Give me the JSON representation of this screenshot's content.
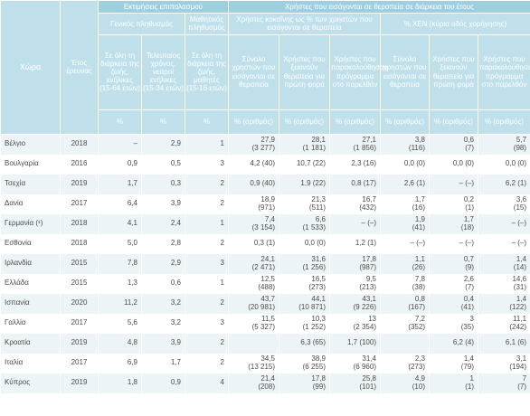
{
  "header": {
    "country": "Χώρα",
    "year": "Έτος έρευνας",
    "prevalence_group": "Εκτιμήσεις επιπολασμού",
    "treatment_group": "Χρήστες που εισάγονται σε θεραπεία σε διάρκεια του έτους",
    "general_population": "Γενικός πληθυσμός",
    "school_population": "Μαθητικός πληθυσμός",
    "cocaine_share": "Χρήστες κοκαΐνης ως % των χρηστών που εισάγονται σε θεραπεία",
    "injecting": "% ΧΕΝ (κύρια οδός χορήγησης)",
    "prevalence_columns": [
      "Σε όλη τη διάρκεια της ζωής, ενήλικες (15-64 ετών)",
      "Τελευταίος χρόνος, νεαροί ενήλικες (15-34 ετών)",
      "Σε όλη τη διάρκεια της ζωής, μαθητές (15-16 ετών)"
    ],
    "treatment_columns": [
      "Σύνολο χρηστών που εισάγονται σε θεραπεία",
      "Χρήστες που ξεκινούν θεραπεία για πρώτη φορά",
      "Χρήστες που παρακολούθησαν πρόγραμμα στο παρελθόν"
    ],
    "injecting_columns": [
      "Σύνολο χρηστών που εισάγονται σε θεραπεία",
      "Χρήστες που ξεκινούν θεραπεία για πρώτη φορά",
      "Χρήστες που παρακολούθησαν πρόγραμμα στο παρελθόν"
    ],
    "units": [
      "%",
      "%",
      "%",
      "% (αριθμός)",
      "% (αριθμός)",
      "% (αριθμός)",
      "% (αριθμός)",
      "% (αριθμός)",
      "% (αριθμός)"
    ]
  },
  "rows": [
    {
      "country": "Βέλγιο",
      "year": "2018",
      "prevalence": [
        "–",
        "2,9",
        "1"
      ],
      "treatment": [
        [
          "27,9",
          "(3 277)"
        ],
        [
          "28,1",
          "(1 181)"
        ],
        [
          "27,1",
          "(1 856)"
        ],
        [
          "3,8",
          "(116)"
        ],
        [
          "0,6",
          "(7)"
        ],
        [
          "5,7",
          "(98)"
        ]
      ]
    },
    {
      "country": "Βουλγαρία",
      "year": "2016",
      "prevalence": [
        "0,9",
        "0,5",
        "3"
      ],
      "treatment": [
        [
          "4,2 (40)",
          null
        ],
        [
          "10,7 (22)",
          null
        ],
        [
          "2,3 (16)",
          null
        ],
        [
          "0,0 (0)",
          null
        ],
        [
          "0,0 (0)",
          null
        ],
        [
          "0,0 (0)",
          null
        ]
      ]
    },
    {
      "country": "Τσεχία",
      "year": "2019",
      "prevalence": [
        "1,7",
        "0,3",
        "2"
      ],
      "treatment": [
        [
          "0,9 (40)",
          null
        ],
        [
          "1,9 (22)",
          null
        ],
        [
          "0,8 (17)",
          null
        ],
        [
          "2,6 (1)",
          null
        ],
        [
          "– (–)",
          null
        ],
        [
          "6,2 (1)",
          null
        ]
      ]
    },
    {
      "country": "Δανία",
      "year": "2017",
      "prevalence": [
        "6,4",
        "3,9",
        "2"
      ],
      "treatment": [
        [
          "18,9",
          "(971)"
        ],
        [
          "21,3",
          "(511)"
        ],
        [
          "16,7",
          "(432)"
        ],
        [
          "1,7",
          "(16)"
        ],
        [
          "0,2",
          "(1)"
        ],
        [
          "3,6",
          "(15)"
        ]
      ]
    },
    {
      "country": "Γερμανία (¹)",
      "year": "2018",
      "prevalence": [
        "4,1",
        "2,4",
        "1"
      ],
      "treatment": [
        [
          "7,4",
          "(3 154)"
        ],
        [
          "6,6",
          "(1 533)"
        ],
        [
          "– (–)",
          null
        ],
        [
          "1,9",
          "(41)"
        ],
        [
          "1,7",
          "(18)"
        ],
        [
          "– (–)",
          null
        ]
      ]
    },
    {
      "country": "Εσθονία",
      "year": "2018",
      "prevalence": [
        "5,0",
        "2,8",
        "2"
      ],
      "treatment": [
        [
          "0,3 (1)",
          null
        ],
        [
          "0,0 (0)",
          null
        ],
        [
          "1,2 (1)",
          null
        ],
        [
          "– (–)",
          null
        ],
        [
          "– (–)",
          null
        ],
        [
          "– (–)",
          null
        ]
      ]
    },
    {
      "country": "Ιρλανδία",
      "year": "2015",
      "prevalence": [
        "7,8",
        "2,9",
        "3"
      ],
      "treatment": [
        [
          "24,1",
          "(2 471)"
        ],
        [
          "31,6",
          "(1 256)"
        ],
        [
          "17,8",
          "(987)"
        ],
        [
          "1,1",
          "(26)"
        ],
        [
          "0,7",
          "(9)"
        ],
        [
          "1,4",
          "(14)"
        ]
      ]
    },
    {
      "country": "Ελλάδα",
      "year": "2015",
      "prevalence": [
        "1,3",
        "0,6",
        "1"
      ],
      "treatment": [
        [
          "12,5",
          "(488)"
        ],
        [
          "16,5",
          "(273)"
        ],
        [
          "9,5",
          "(213)"
        ],
        [
          "7,8",
          "(38)"
        ],
        [
          "2,6",
          "(7)"
        ],
        [
          "14,6",
          "(31)"
        ]
      ]
    },
    {
      "country": "Ισπανία",
      "year": "2020",
      "prevalence": [
        "11,2",
        "3,2",
        "2"
      ],
      "treatment": [
        [
          "43,7",
          "(20 981)"
        ],
        [
          "44,1",
          "(10 871)"
        ],
        [
          "43,1",
          "(9 226)"
        ],
        [
          "0,8",
          "(167)"
        ],
        [
          "0,4",
          "(41)"
        ],
        [
          "1,4",
          "(122)"
        ]
      ]
    },
    {
      "country": "Γαλλία",
      "year": "2017",
      "prevalence": [
        "5,6",
        "3,2",
        "3"
      ],
      "treatment": [
        [
          "11,5",
          "(5 327)"
        ],
        [
          "10,3",
          "(1 252)"
        ],
        [
          "13",
          "(2 354)"
        ],
        [
          "7,2",
          "(352)"
        ],
        [
          "3",
          "(35)"
        ],
        [
          "11,1",
          "(242)"
        ]
      ]
    },
    {
      "country": "Κροατία",
      "year": "2019",
      "prevalence": [
        "4,8",
        "3,9",
        "2"
      ],
      "treatment": [
        null,
        [
          "6,3 (65)",
          null
        ],
        [
          "1,7 (100)",
          null
        ],
        null,
        [
          "6,2 (4)",
          null
        ],
        [
          "6,1 (6)",
          null
        ]
      ]
    },
    {
      "country": "Ιταλία",
      "year": "2017",
      "prevalence": [
        "6,9",
        "1,7",
        "2"
      ],
      "treatment": [
        [
          "34,5",
          "(13 215)"
        ],
        [
          "38,9",
          "(6 255)"
        ],
        [
          "31,4",
          "(6 960)"
        ],
        [
          "2,3",
          "(273)"
        ],
        [
          "1,4",
          "(79)"
        ],
        [
          "3,1",
          "(194)"
        ]
      ]
    },
    {
      "country": "Κύπρος",
      "year": "2019",
      "prevalence": [
        "1,8",
        "0,9",
        "4"
      ],
      "treatment": [
        [
          "21,4",
          "(208)"
        ],
        [
          "17,8",
          "(99)"
        ],
        [
          "25,8",
          "(101)"
        ],
        [
          "4,9",
          "(10)"
        ],
        [
          "1",
          "(1)"
        ],
        [
          "7",
          "(7)"
        ]
      ]
    }
  ]
}
